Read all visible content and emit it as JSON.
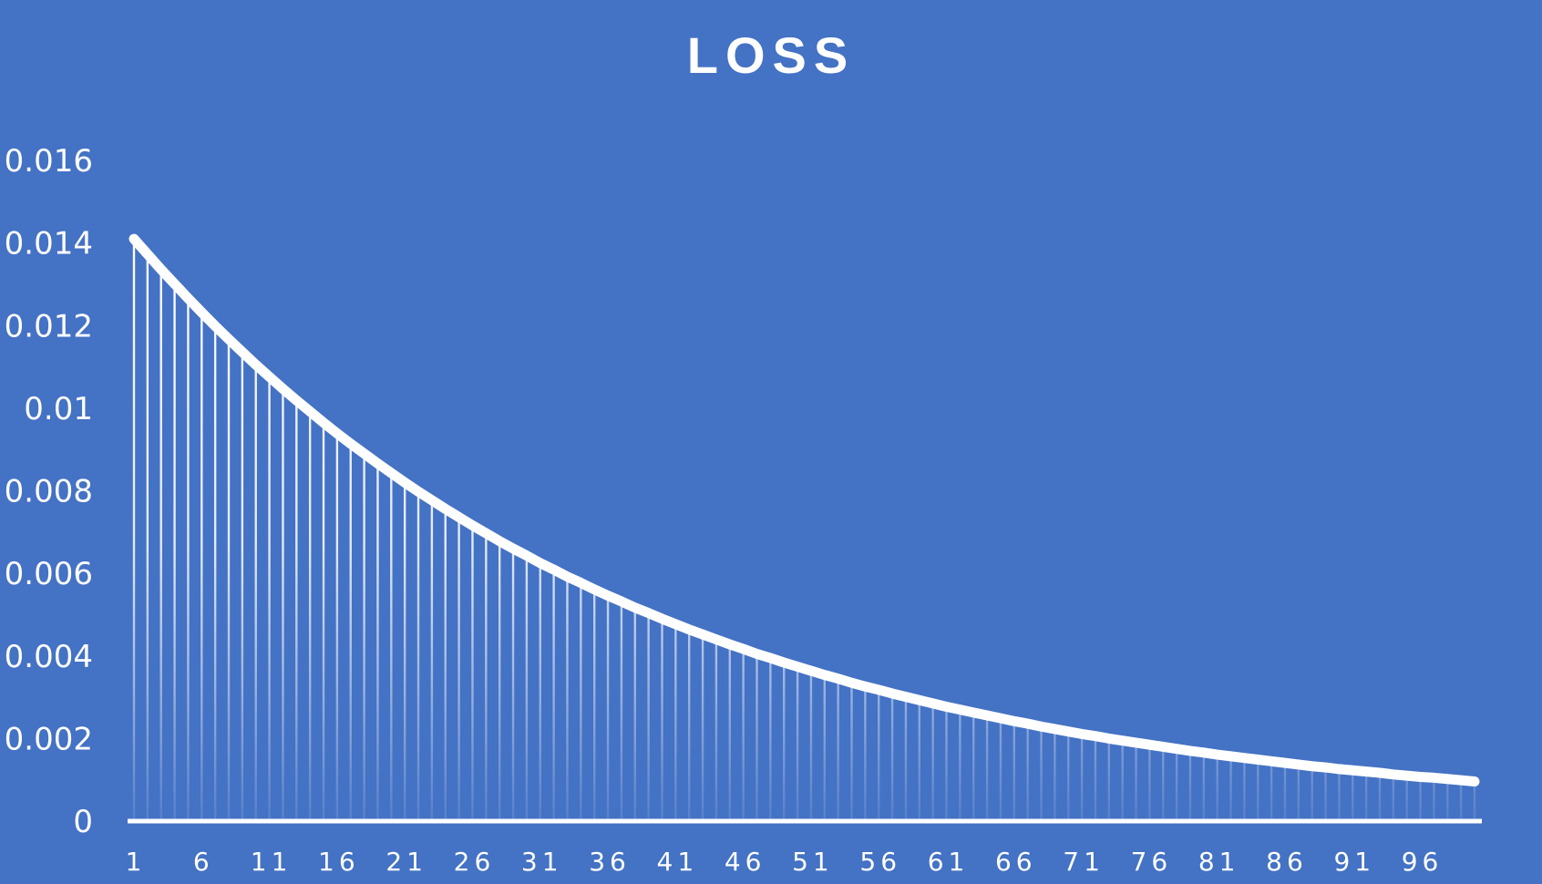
{
  "colors": {
    "background": "#4472C4",
    "foreground": "#FFFFFF"
  },
  "chart_data": {
    "type": "line",
    "title": "LOSS",
    "xlabel": "",
    "ylabel": "",
    "x_tick_labels": [
      "1",
      "6",
      "11",
      "16",
      "21",
      "26",
      "31",
      "36",
      "41",
      "46",
      "51",
      "56",
      "61",
      "66",
      "71",
      "76",
      "81",
      "86",
      "91",
      "96"
    ],
    "y_tick_labels": [
      "0",
      "0.002",
      "0.004",
      "0.006",
      "0.008",
      "0.01",
      "0.012",
      "0.014",
      "0.016"
    ],
    "xlim": [
      1,
      100
    ],
    "ylim": [
      0,
      0.016
    ],
    "grid": false,
    "legend": "none",
    "drop_lines": true,
    "series": [
      {
        "x": [
          1,
          2,
          3,
          4,
          5,
          6,
          7,
          8,
          9,
          10,
          11,
          12,
          13,
          14,
          15,
          16,
          17,
          18,
          19,
          20,
          21,
          22,
          23,
          24,
          25,
          26,
          27,
          28,
          29,
          30,
          31,
          32,
          33,
          34,
          35,
          36,
          37,
          38,
          39,
          40,
          41,
          42,
          43,
          44,
          45,
          46,
          47,
          48,
          49,
          50,
          51,
          52,
          53,
          54,
          55,
          56,
          57,
          58,
          59,
          60,
          61,
          62,
          63,
          64,
          65,
          66,
          67,
          68,
          69,
          70,
          71,
          72,
          73,
          74,
          75,
          76,
          77,
          78,
          79,
          80,
          81,
          82,
          83,
          84,
          85,
          86,
          87,
          88,
          89,
          90,
          91,
          92,
          93,
          94,
          95,
          96,
          97,
          98,
          99,
          100
        ],
        "values": [
          0.0141,
          0.01373,
          0.01336,
          0.01301,
          0.01266,
          0.01232,
          0.01199,
          0.01167,
          0.01136,
          0.01105,
          0.01076,
          0.01047,
          0.01019,
          0.00992,
          0.00965,
          0.00939,
          0.00914,
          0.0089,
          0.00866,
          0.00843,
          0.0082,
          0.00798,
          0.00777,
          0.00756,
          0.00736,
          0.00716,
          0.00697,
          0.00678,
          0.0066,
          0.00643,
          0.00625,
          0.00609,
          0.00592,
          0.00577,
          0.00561,
          0.00546,
          0.00532,
          0.00517,
          0.00504,
          0.0049,
          0.00477,
          0.00464,
          0.00452,
          0.0044,
          0.00428,
          0.00417,
          0.00405,
          0.00395,
          0.00384,
          0.00374,
          0.00364,
          0.00354,
          0.00345,
          0.00335,
          0.00326,
          0.00318,
          0.00309,
          0.00301,
          0.00293,
          0.00285,
          0.00277,
          0.0027,
          0.00263,
          0.00256,
          0.00249,
          0.00242,
          0.00236,
          0.00229,
          0.00223,
          0.00217,
          0.00211,
          0.00206,
          0.002,
          0.00195,
          0.0019,
          0.00185,
          0.0018,
          0.00175,
          0.0017,
          0.00166,
          0.00161,
          0.00157,
          0.00153,
          0.00149,
          0.00145,
          0.00141,
          0.00137,
          0.00133,
          0.0013,
          0.00126,
          0.00123,
          0.0012,
          0.00117,
          0.00113,
          0.0011,
          0.00107,
          0.00105,
          0.00102,
          0.00099,
          0.00096
        ]
      }
    ]
  }
}
